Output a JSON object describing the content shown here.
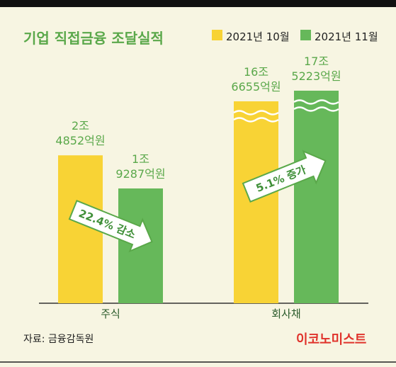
{
  "chart_data": {
    "type": "bar",
    "title": "기업 직접금융 조달실적",
    "categories": [
      "주식",
      "회사채"
    ],
    "series": [
      {
        "name": "2021년 10월",
        "color": "#f8d335",
        "values": [
          24852,
          166655
        ],
        "value_labels": [
          "2조\n4852억원",
          "16조\n6655억원"
        ]
      },
      {
        "name": "2021년 11월",
        "color": "#66b85a",
        "values": [
          19287,
          175223
        ],
        "value_labels": [
          "1조\n9287억원",
          "17조\n5223억원"
        ]
      }
    ],
    "annotations": [
      "22.4% 감소",
      "5.1% 증가"
    ],
    "source": "자료: 금융감독원",
    "brand": "이코노미스트"
  }
}
